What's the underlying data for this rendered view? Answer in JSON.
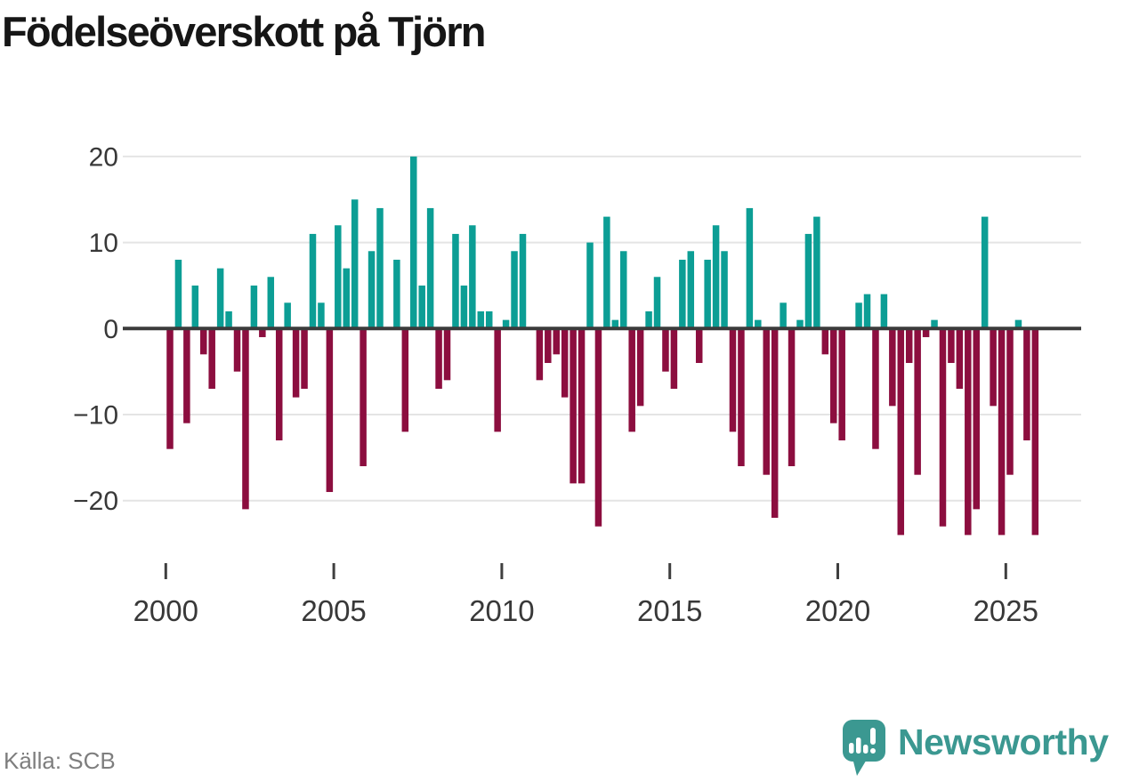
{
  "title": "Födelseöverskott på Tjörn",
  "source": "Källa: SCB",
  "branding": {
    "name": "Newsworthy"
  },
  "colors": {
    "positive_bar": "#0C9E95",
    "negative_bar": "#8C0E3F",
    "zero_line": "#3B3B3B",
    "gridline": "#E4E4E4",
    "axis_text": "#383838",
    "tick_mark": "#3F3F3F",
    "title_text": "#161616",
    "source_text": "#7E7E7E",
    "brand_teal": "#3B9891"
  },
  "chart_data": {
    "type": "bar",
    "title": "Födelseöverskott på Tjörn",
    "legend": "none",
    "grid": "horizontal",
    "x_ticks": [
      2000,
      2005,
      2010,
      2015,
      2020,
      2025
    ],
    "y_ticks": [
      20,
      10,
      0,
      -10,
      -20
    ],
    "ylim": [
      -25,
      21
    ],
    "series_by_year": [
      {
        "year": 2000,
        "q": [
          -14,
          8,
          -11,
          5
        ]
      },
      {
        "year": 2001,
        "q": [
          -3,
          -7,
          7,
          2
        ]
      },
      {
        "year": 2002,
        "q": [
          -5,
          -21,
          5,
          -1
        ]
      },
      {
        "year": 2003,
        "q": [
          6,
          -13,
          3,
          -8
        ]
      },
      {
        "year": 2004,
        "q": [
          -7,
          11,
          3,
          -19
        ]
      },
      {
        "year": 2005,
        "q": [
          12,
          7,
          15,
          -16
        ]
      },
      {
        "year": 2006,
        "q": [
          9,
          14,
          0,
          8
        ]
      },
      {
        "year": 2007,
        "q": [
          -12,
          20,
          5,
          14
        ]
      },
      {
        "year": 2008,
        "q": [
          -7,
          -6,
          11,
          5
        ]
      },
      {
        "year": 2009,
        "q": [
          12,
          2,
          2,
          -12
        ]
      },
      {
        "year": 2010,
        "q": [
          1,
          9,
          11,
          0
        ]
      },
      {
        "year": 2011,
        "q": [
          -6,
          -4,
          -3,
          -8
        ]
      },
      {
        "year": 2012,
        "q": [
          -18,
          -18,
          10,
          -23
        ]
      },
      {
        "year": 2013,
        "q": [
          13,
          1,
          9,
          -12
        ]
      },
      {
        "year": 2014,
        "q": [
          -9,
          2,
          6,
          -5
        ]
      },
      {
        "year": 2015,
        "q": [
          -7,
          8,
          9,
          -4
        ]
      },
      {
        "year": 2016,
        "q": [
          8,
          12,
          9,
          -12
        ]
      },
      {
        "year": 2017,
        "q": [
          -16,
          14,
          1,
          -17
        ]
      },
      {
        "year": 2018,
        "q": [
          -22,
          3,
          -16,
          1
        ]
      },
      {
        "year": 2019,
        "q": [
          11,
          13,
          -3,
          -11
        ]
      },
      {
        "year": 2020,
        "q": [
          -13,
          0,
          3,
          4
        ]
      },
      {
        "year": 2021,
        "q": [
          -14,
          4,
          -9,
          -24
        ]
      },
      {
        "year": 2022,
        "q": [
          -4,
          -17,
          -1,
          1
        ]
      },
      {
        "year": 2023,
        "q": [
          -23,
          -4,
          -7,
          -24
        ]
      },
      {
        "year": 2024,
        "q": [
          -21,
          13,
          -9,
          -24
        ]
      },
      {
        "year": 2025,
        "q": [
          -17,
          1,
          -13,
          -24
        ]
      }
    ]
  }
}
